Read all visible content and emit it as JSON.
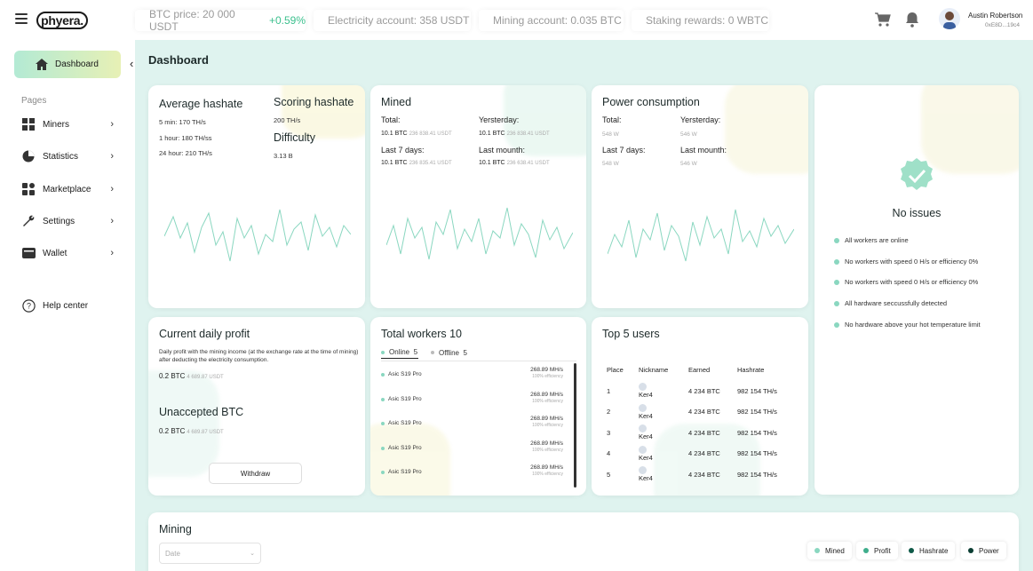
{
  "header": {
    "logo": "phyera.",
    "btc_price_label": "BTC price: 20 000 USDT",
    "btc_change": "+0.59%",
    "electricity": "Electricity account: 358 USDT",
    "mining_account": "Mining account: 0.035 BTC",
    "staking": "Staking rewards: 0 WBTC",
    "user_name": "Austin Robertson",
    "user_address": "0xE8D...19c4"
  },
  "sidebar": {
    "dashboard": "Dashboard",
    "pages_label": "Pages",
    "items": [
      {
        "label": "Miners",
        "icon": "grid-icon"
      },
      {
        "label": "Statistics",
        "icon": "pie-icon"
      },
      {
        "label": "Marketplace",
        "icon": "blocks-icon"
      },
      {
        "label": "Settings",
        "icon": "wrench-icon"
      },
      {
        "label": "Wallet",
        "icon": "wallet-icon"
      }
    ],
    "help": "Help center"
  },
  "page_title": "Dashboard",
  "hashrate": {
    "title": "Average hashate",
    "lines": [
      "5 min: 170 TH/s",
      "1 hour: 180 TH/ss",
      "24 hour: 210 TH/s"
    ],
    "scoring_title": "Scoring hashate",
    "scoring_value": "200 TH/s",
    "difficulty_title": "Difficulty",
    "difficulty_value": "3.13 B"
  },
  "mined": {
    "title": "Mined",
    "total_label": "Total:",
    "yesterday_label": "Yersterday:",
    "last7_label": "Last 7 days:",
    "lastmonth_label": "Last mounth:",
    "btc": "10.1 BTC",
    "usdt1": "236 838.41 USDT",
    "usdt2": "236 838.41 USDT",
    "usdt3": "236 835.41 USDT",
    "usdt4": "236 638.41 USDT"
  },
  "power": {
    "title": "Power consumption",
    "total_label": "Total:",
    "yesterday_label": "Yersterday:",
    "last7_label": "Last 7 days:",
    "lastmonth_label": "Last mounth:",
    "v1": "548 W",
    "v2": "546 W",
    "v3": "548 W",
    "v4": "546 W"
  },
  "issues": {
    "title": "No issues",
    "items": [
      "All workers are online",
      "No workers with speed 0 H/s or efficiency 0%",
      "No workers with speed 0 H/s or efficiency 0%",
      "All hardware seccussfully detected",
      "No hardware above your hot temperature limit"
    ]
  },
  "profit": {
    "title": "Current daily profit",
    "desc": "Daily profit with the mining income (at the exchange rate at the time of mining) after deducting the electricity consumption.",
    "btc": "0.2 BTC",
    "usdt": "4 689.87 USDT",
    "unaccepted_title": "Unaccepted BTC",
    "unaccepted_btc": "0.2 BTC",
    "unaccepted_usdt": "4 689.87 USDT",
    "withdraw": "Withdraw"
  },
  "workers": {
    "title": "Total workers 10",
    "online_label": "Online",
    "online_count": "5",
    "offline_label": "Offline",
    "offline_count": "5",
    "name": "Asic S19 Pro",
    "speed": "268.89 MH/s",
    "eff": "100% efficiency",
    "count": 5
  },
  "top": {
    "title": "Top 5 users",
    "headers": [
      "Place",
      "Nickname",
      "Earned",
      "Hashrate"
    ],
    "rows": [
      [
        "1",
        "Ker4",
        "4 234 BTC",
        "982 154 TH/s"
      ],
      [
        "2",
        "Ker4",
        "4 234 BTC",
        "982 154 TH/s"
      ],
      [
        "3",
        "Ker4",
        "4 234 BTC",
        "982 154 TH/s"
      ],
      [
        "4",
        "Ker4",
        "4 234 BTC",
        "982 154 TH/s"
      ],
      [
        "5",
        "Ker4",
        "4 234 BTC",
        "982 154 TH/s"
      ]
    ]
  },
  "mining": {
    "title": "Mining",
    "date_placeholder": "Date",
    "legend": [
      {
        "label": "Mined",
        "color": "#8ad7c0"
      },
      {
        "label": "Profit",
        "color": "#3fae8c"
      },
      {
        "label": "Hashrate",
        "color": "#0f5a48"
      },
      {
        "label": "Power",
        "color": "#0a3d32"
      }
    ]
  },
  "colors": {
    "accent": "#8ad7c0",
    "up": "#3cc08e"
  }
}
